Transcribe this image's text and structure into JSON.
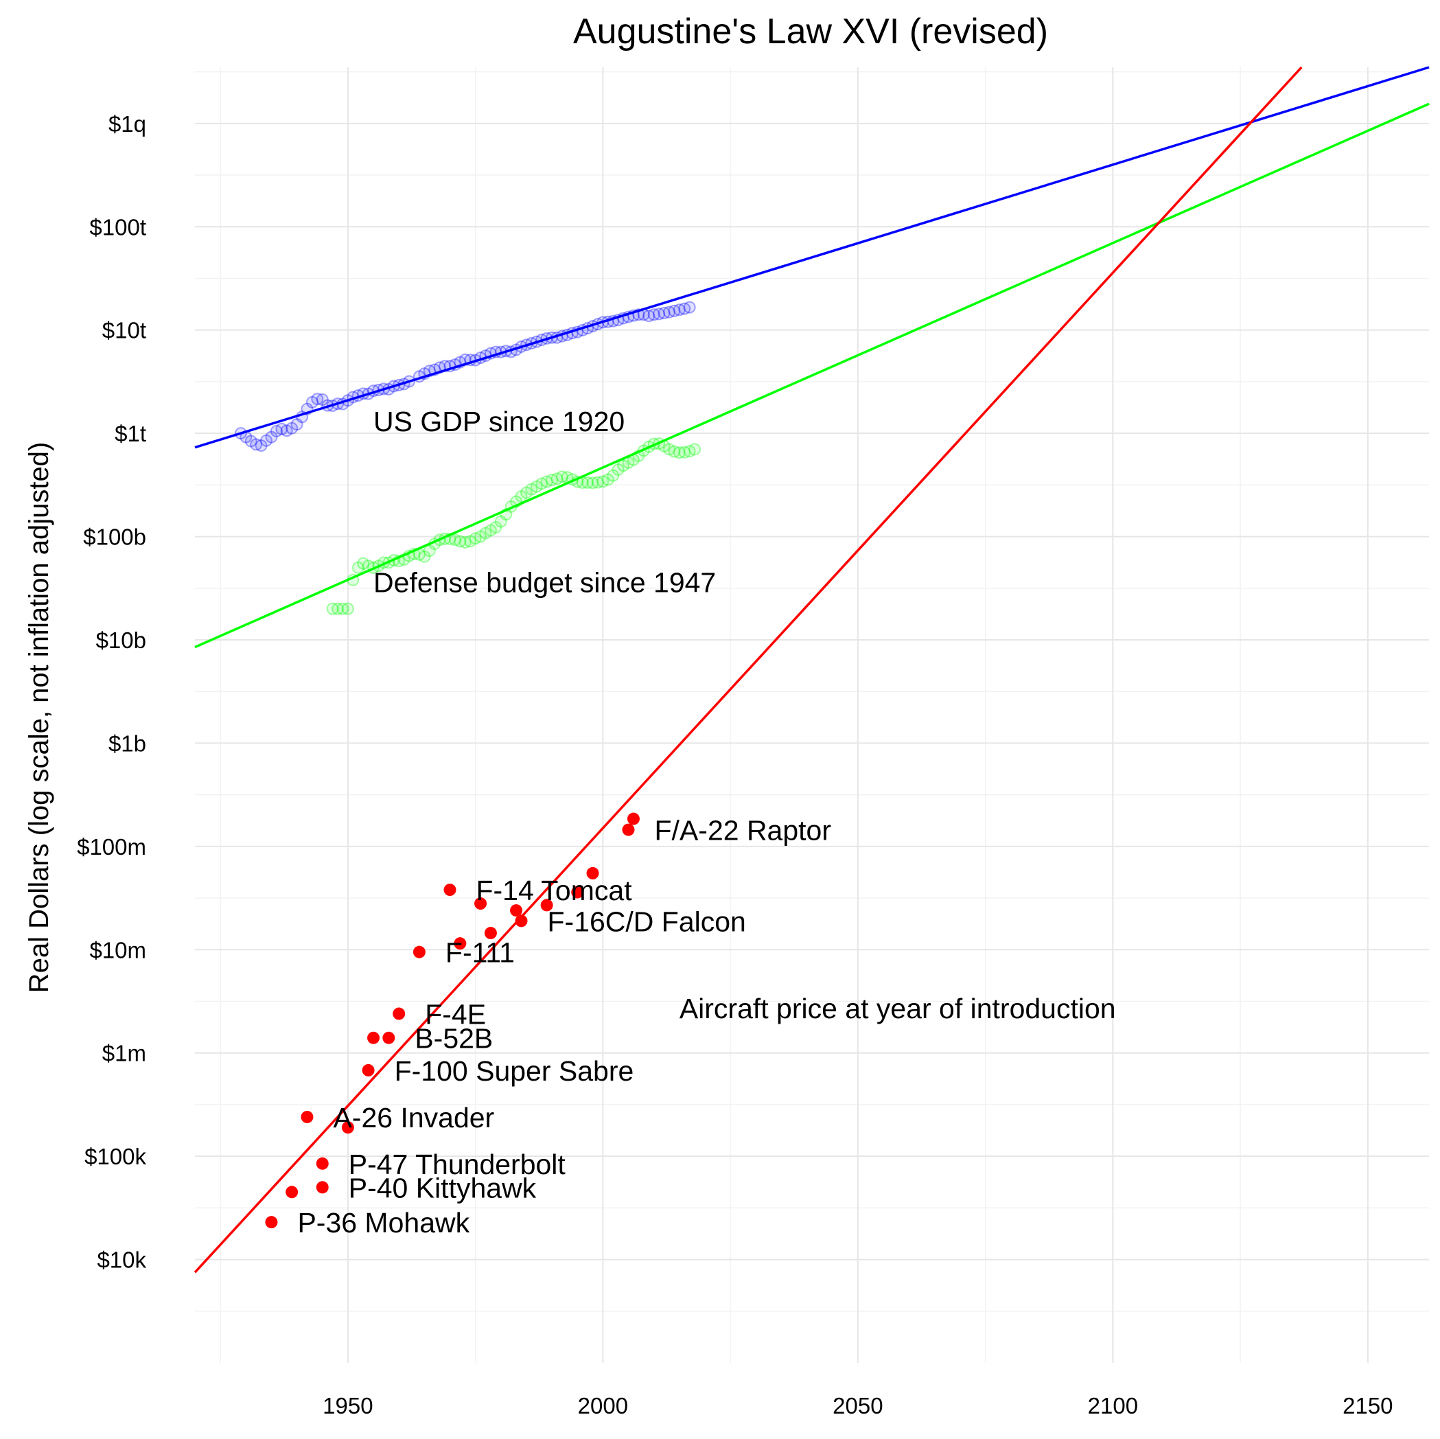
{
  "chart_data": {
    "type": "scatter",
    "title": "Augustine's Law XVI (revised)",
    "xlabel": "",
    "ylabel": "Real Dollars (log scale, not inflation adjusted)",
    "y_scale": "log10",
    "xlim": [
      1920,
      2162
    ],
    "ylim": [
      1000,
      3500000000000000.0
    ],
    "grid": true,
    "x_ticks": [
      {
        "value": 1950,
        "label": "1950"
      },
      {
        "value": 2000,
        "label": "2000"
      },
      {
        "value": 2050,
        "label": "2050"
      },
      {
        "value": 2100,
        "label": "2100"
      },
      {
        "value": 2150,
        "label": "2150"
      }
    ],
    "y_ticks": [
      {
        "value": 10000.0,
        "label": "$10k"
      },
      {
        "value": 100000.0,
        "label": "$100k"
      },
      {
        "value": 1000000.0,
        "label": "$1m"
      },
      {
        "value": 10000000.0,
        "label": "$10m"
      },
      {
        "value": 100000000.0,
        "label": "$100m"
      },
      {
        "value": 1000000000.0,
        "label": "$1b"
      },
      {
        "value": 10000000000.0,
        "label": "$10b"
      },
      {
        "value": 100000000000.0,
        "label": "$100b"
      },
      {
        "value": 1000000000000.0,
        "label": "$1t"
      },
      {
        "value": 10000000000000.0,
        "label": "$10t"
      },
      {
        "value": 100000000000000.0,
        "label": "$100t"
      },
      {
        "value": 1000000000000000.0,
        "label": "$1q"
      }
    ],
    "annotations": [
      {
        "text": "US GDP since 1920",
        "x": 1955,
        "y": 1300000000000.0
      },
      {
        "text": "Defense budget since 1947",
        "x": 1955,
        "y": 36000000000.0
      },
      {
        "text": "Aircraft price at year of introduction",
        "x": 2015,
        "y": 2700000.0
      }
    ],
    "series": [
      {
        "id": "gdp",
        "color": "#0000ff",
        "marker": "hollow-circle",
        "trend_line": {
          "x": [
            1920,
            2162
          ],
          "y": [
            730000000000.0,
            3500000000000000.0
          ]
        },
        "points": [
          [
            1929,
            1000000000000.0
          ],
          [
            1930,
            920000000000.0
          ],
          [
            1931,
            840000000000.0
          ],
          [
            1932,
            780000000000.0
          ],
          [
            1933,
            760000000000.0
          ],
          [
            1934,
            850000000000.0
          ],
          [
            1935,
            920000000000.0
          ],
          [
            1936,
            1050000000000.0
          ],
          [
            1937,
            1100000000000.0
          ],
          [
            1938,
            1060000000000.0
          ],
          [
            1939,
            1120000000000.0
          ],
          [
            1940,
            1220000000000.0
          ],
          [
            1941,
            1440000000000.0
          ],
          [
            1942,
            1720000000000.0
          ],
          [
            1943,
            2000000000000.0
          ],
          [
            1944,
            2150000000000.0
          ],
          [
            1945,
            2120000000000.0
          ],
          [
            1946,
            1860000000000.0
          ],
          [
            1947,
            1850000000000.0
          ],
          [
            1948,
            1930000000000.0
          ],
          [
            1949,
            1920000000000.0
          ],
          [
            1950,
            2080000000000.0
          ],
          [
            1951,
            2240000000000.0
          ],
          [
            1952,
            2320000000000.0
          ],
          [
            1953,
            2420000000000.0
          ],
          [
            1954,
            2410000000000.0
          ],
          [
            1955,
            2580000000000.0
          ],
          [
            1956,
            2630000000000.0
          ],
          [
            1957,
            2690000000000.0
          ],
          [
            1958,
            2670000000000.0
          ],
          [
            1959,
            2860000000000.0
          ],
          [
            1960,
            2930000000000.0
          ],
          [
            1961,
            3000000000000.0
          ],
          [
            1962,
            3180000000000.0
          ],
          [
            1964,
            3550000000000.0
          ],
          [
            1965,
            3780000000000.0
          ],
          [
            1966,
            4020000000000.0
          ],
          [
            1967,
            4120000000000.0
          ],
          [
            1968,
            4330000000000.0
          ],
          [
            1969,
            4470000000000.0
          ],
          [
            1970,
            4470000000000.0
          ],
          [
            1971,
            4620000000000.0
          ],
          [
            1972,
            4880000000000.0
          ],
          [
            1973,
            5160000000000.0
          ],
          [
            1974,
            5130000000000.0
          ],
          [
            1975,
            5110000000000.0
          ],
          [
            1976,
            5390000000000.0
          ],
          [
            1977,
            5640000000000.0
          ],
          [
            1978,
            5950000000000.0
          ],
          [
            1979,
            6130000000000.0
          ],
          [
            1980,
            6120000000000.0
          ],
          [
            1981,
            6270000000000.0
          ],
          [
            1982,
            6150000000000.0
          ],
          [
            1983,
            6430000000000.0
          ],
          [
            1984,
            6900000000000.0
          ],
          [
            1985,
            7190000000000.0
          ],
          [
            1986,
            7440000000000.0
          ],
          [
            1987,
            7700000000000.0
          ],
          [
            1988,
            8030000000000.0
          ],
          [
            1989,
            8300000000000.0
          ],
          [
            1990,
            8450000000000.0
          ],
          [
            1991,
            8440000000000.0
          ],
          [
            1992,
            8730000000000.0
          ],
          [
            1993,
            8960000000000.0
          ],
          [
            1994,
            9320000000000.0
          ],
          [
            1995,
            9570000000000.0
          ],
          [
            1996,
            9960000000000.0
          ],
          [
            1997,
            10400000000000.0
          ],
          [
            1998,
            10900000000000.0
          ],
          [
            1999,
            11400000000000.0
          ],
          [
            2000,
            11900000000000.0
          ],
          [
            2001,
            12000000000000.0
          ],
          [
            2002,
            12200000000000.0
          ],
          [
            2003,
            12500000000000.0
          ],
          [
            2004,
            13000000000000.0
          ],
          [
            2005,
            13400000000000.0
          ],
          [
            2006,
            13800000000000.0
          ],
          [
            2007,
            14100000000000.0
          ],
          [
            2008,
            14100000000000.0
          ],
          [
            2009,
            13700000000000.0
          ],
          [
            2010,
            14100000000000.0
          ],
          [
            2011,
            14300000000000.0
          ],
          [
            2012,
            14600000000000.0
          ],
          [
            2013,
            14900000000000.0
          ],
          [
            2014,
            15300000000000.0
          ],
          [
            2015,
            15700000000000.0
          ],
          [
            2016,
            16100000000000.0
          ],
          [
            2017,
            16600000000000.0
          ]
        ]
      },
      {
        "id": "defense",
        "color": "#00ff00",
        "marker": "hollow-circle",
        "trend_line": {
          "x": [
            1920,
            2162
          ],
          "y": [
            8500000000.0,
            1550000000000000.0
          ]
        },
        "points": [
          [
            1947,
            20000000000.0
          ],
          [
            1948,
            20000000000.0
          ],
          [
            1949,
            20000000000.0
          ],
          [
            1950,
            20000000000.0
          ],
          [
            1951,
            38000000000.0
          ],
          [
            1952,
            50000000000.0
          ],
          [
            1953,
            55000000000.0
          ],
          [
            1954,
            52000000000.0
          ],
          [
            1955,
            50000000000.0
          ],
          [
            1956,
            52000000000.0
          ],
          [
            1957,
            56000000000.0
          ],
          [
            1958,
            56000000000.0
          ],
          [
            1959,
            59000000000.0
          ],
          [
            1960,
            58000000000.0
          ],
          [
            1961,
            60000000000.0
          ],
          [
            1962,
            65000000000.0
          ],
          [
            1963,
            68000000000.0
          ],
          [
            1964,
            67000000000.0
          ],
          [
            1965,
            64000000000.0
          ],
          [
            1966,
            73000000000.0
          ],
          [
            1967,
            85000000000.0
          ],
          [
            1968,
            93000000000.0
          ],
          [
            1969,
            95000000000.0
          ],
          [
            1970,
            95000000000.0
          ],
          [
            1971,
            93000000000.0
          ],
          [
            1972,
            90000000000.0
          ],
          [
            1973,
            88000000000.0
          ],
          [
            1974,
            90000000000.0
          ],
          [
            1975,
            96000000000.0
          ],
          [
            1976,
            100000000000.0
          ],
          [
            1977,
            108000000000.0
          ],
          [
            1978,
            115000000000.0
          ],
          [
            1979,
            123000000000.0
          ],
          [
            1980,
            140000000000.0
          ],
          [
            1981,
            164000000000.0
          ],
          [
            1982,
            195000000000.0
          ],
          [
            1983,
            218000000000.0
          ],
          [
            1984,
            245000000000.0
          ],
          [
            1985,
            266000000000.0
          ],
          [
            1986,
            287000000000.0
          ],
          [
            1987,
            305000000000.0
          ],
          [
            1988,
            325000000000.0
          ],
          [
            1989,
            340000000000.0
          ],
          [
            1990,
            353000000000.0
          ],
          [
            1991,
            363000000000.0
          ],
          [
            1992,
            380000000000.0
          ],
          [
            1993,
            375000000000.0
          ],
          [
            1994,
            358000000000.0
          ],
          [
            1995,
            340000000000.0
          ],
          [
            1996,
            333000000000.0
          ],
          [
            1997,
            333000000000.0
          ],
          [
            1998,
            331000000000.0
          ],
          [
            1999,
            335000000000.0
          ],
          [
            2000,
            341000000000.0
          ],
          [
            2001,
            356000000000.0
          ],
          [
            2002,
            390000000000.0
          ],
          [
            2003,
            445000000000.0
          ],
          [
            2004,
            485000000000.0
          ],
          [
            2005,
            520000000000.0
          ],
          [
            2006,
            555000000000.0
          ],
          [
            2007,
            605000000000.0
          ],
          [
            2008,
            680000000000.0
          ],
          [
            2009,
            740000000000.0
          ],
          [
            2010,
            790000000000.0
          ],
          [
            2011,
            795000000000.0
          ],
          [
            2012,
            750000000000.0
          ],
          [
            2013,
            700000000000.0
          ],
          [
            2014,
            665000000000.0
          ],
          [
            2015,
            650000000000.0
          ],
          [
            2016,
            655000000000.0
          ],
          [
            2017,
            670000000000.0
          ],
          [
            2018,
            700000000000.0
          ]
        ]
      },
      {
        "id": "aircraft",
        "color": "#ff0000",
        "marker": "filled-circle",
        "trend_line": {
          "x": [
            1920,
            2137
          ],
          "y": [
            7500.0,
            3500000000000000.0
          ]
        },
        "points": [
          {
            "year": 1935,
            "price": 23000.0,
            "label": "P-36 Mohawk"
          },
          {
            "year": 1939,
            "price": 45000.0,
            "label": ""
          },
          {
            "year": 1945,
            "price": 50000.0,
            "label": "P-40 Kittyhawk"
          },
          {
            "year": 1945,
            "price": 85000.0,
            "label": "P-47 Thunderbolt"
          },
          {
            "year": 1942,
            "price": 240000.0,
            "label": "A-26 Invader"
          },
          {
            "year": 1950,
            "price": 190000.0,
            "label": ""
          },
          {
            "year": 1954,
            "price": 680000.0,
            "label": "F-100 Super Sabre"
          },
          {
            "year": 1955,
            "price": 1400000.0,
            "label": ""
          },
          {
            "year": 1958,
            "price": 1400000.0,
            "label": "B-52B"
          },
          {
            "year": 1960,
            "price": 2400000.0,
            "label": "F-4E"
          },
          {
            "year": 1964,
            "price": 9500000.0,
            "label": "F-111"
          },
          {
            "year": 1972,
            "price": 11500000.0,
            "label": ""
          },
          {
            "year": 1978,
            "price": 14500000.0,
            "label": ""
          },
          {
            "year": 1970,
            "price": 38000000.0,
            "label": "F-14 Tomcat"
          },
          {
            "year": 1976,
            "price": 28000000.0,
            "label": ""
          },
          {
            "year": 1983,
            "price": 24000000.0,
            "label": ""
          },
          {
            "year": 1984,
            "price": 19000000.0,
            "label": "F-16C/D Falcon"
          },
          {
            "year": 1989,
            "price": 27000000.0,
            "label": ""
          },
          {
            "year": 1995,
            "price": 36000000.0,
            "label": ""
          },
          {
            "year": 1998,
            "price": 55000000.0,
            "label": ""
          },
          {
            "year": 2005,
            "price": 145000000.0,
            "label": "F/A-22 Raptor"
          },
          {
            "year": 2006,
            "price": 185000000.0,
            "label": ""
          }
        ]
      }
    ]
  }
}
